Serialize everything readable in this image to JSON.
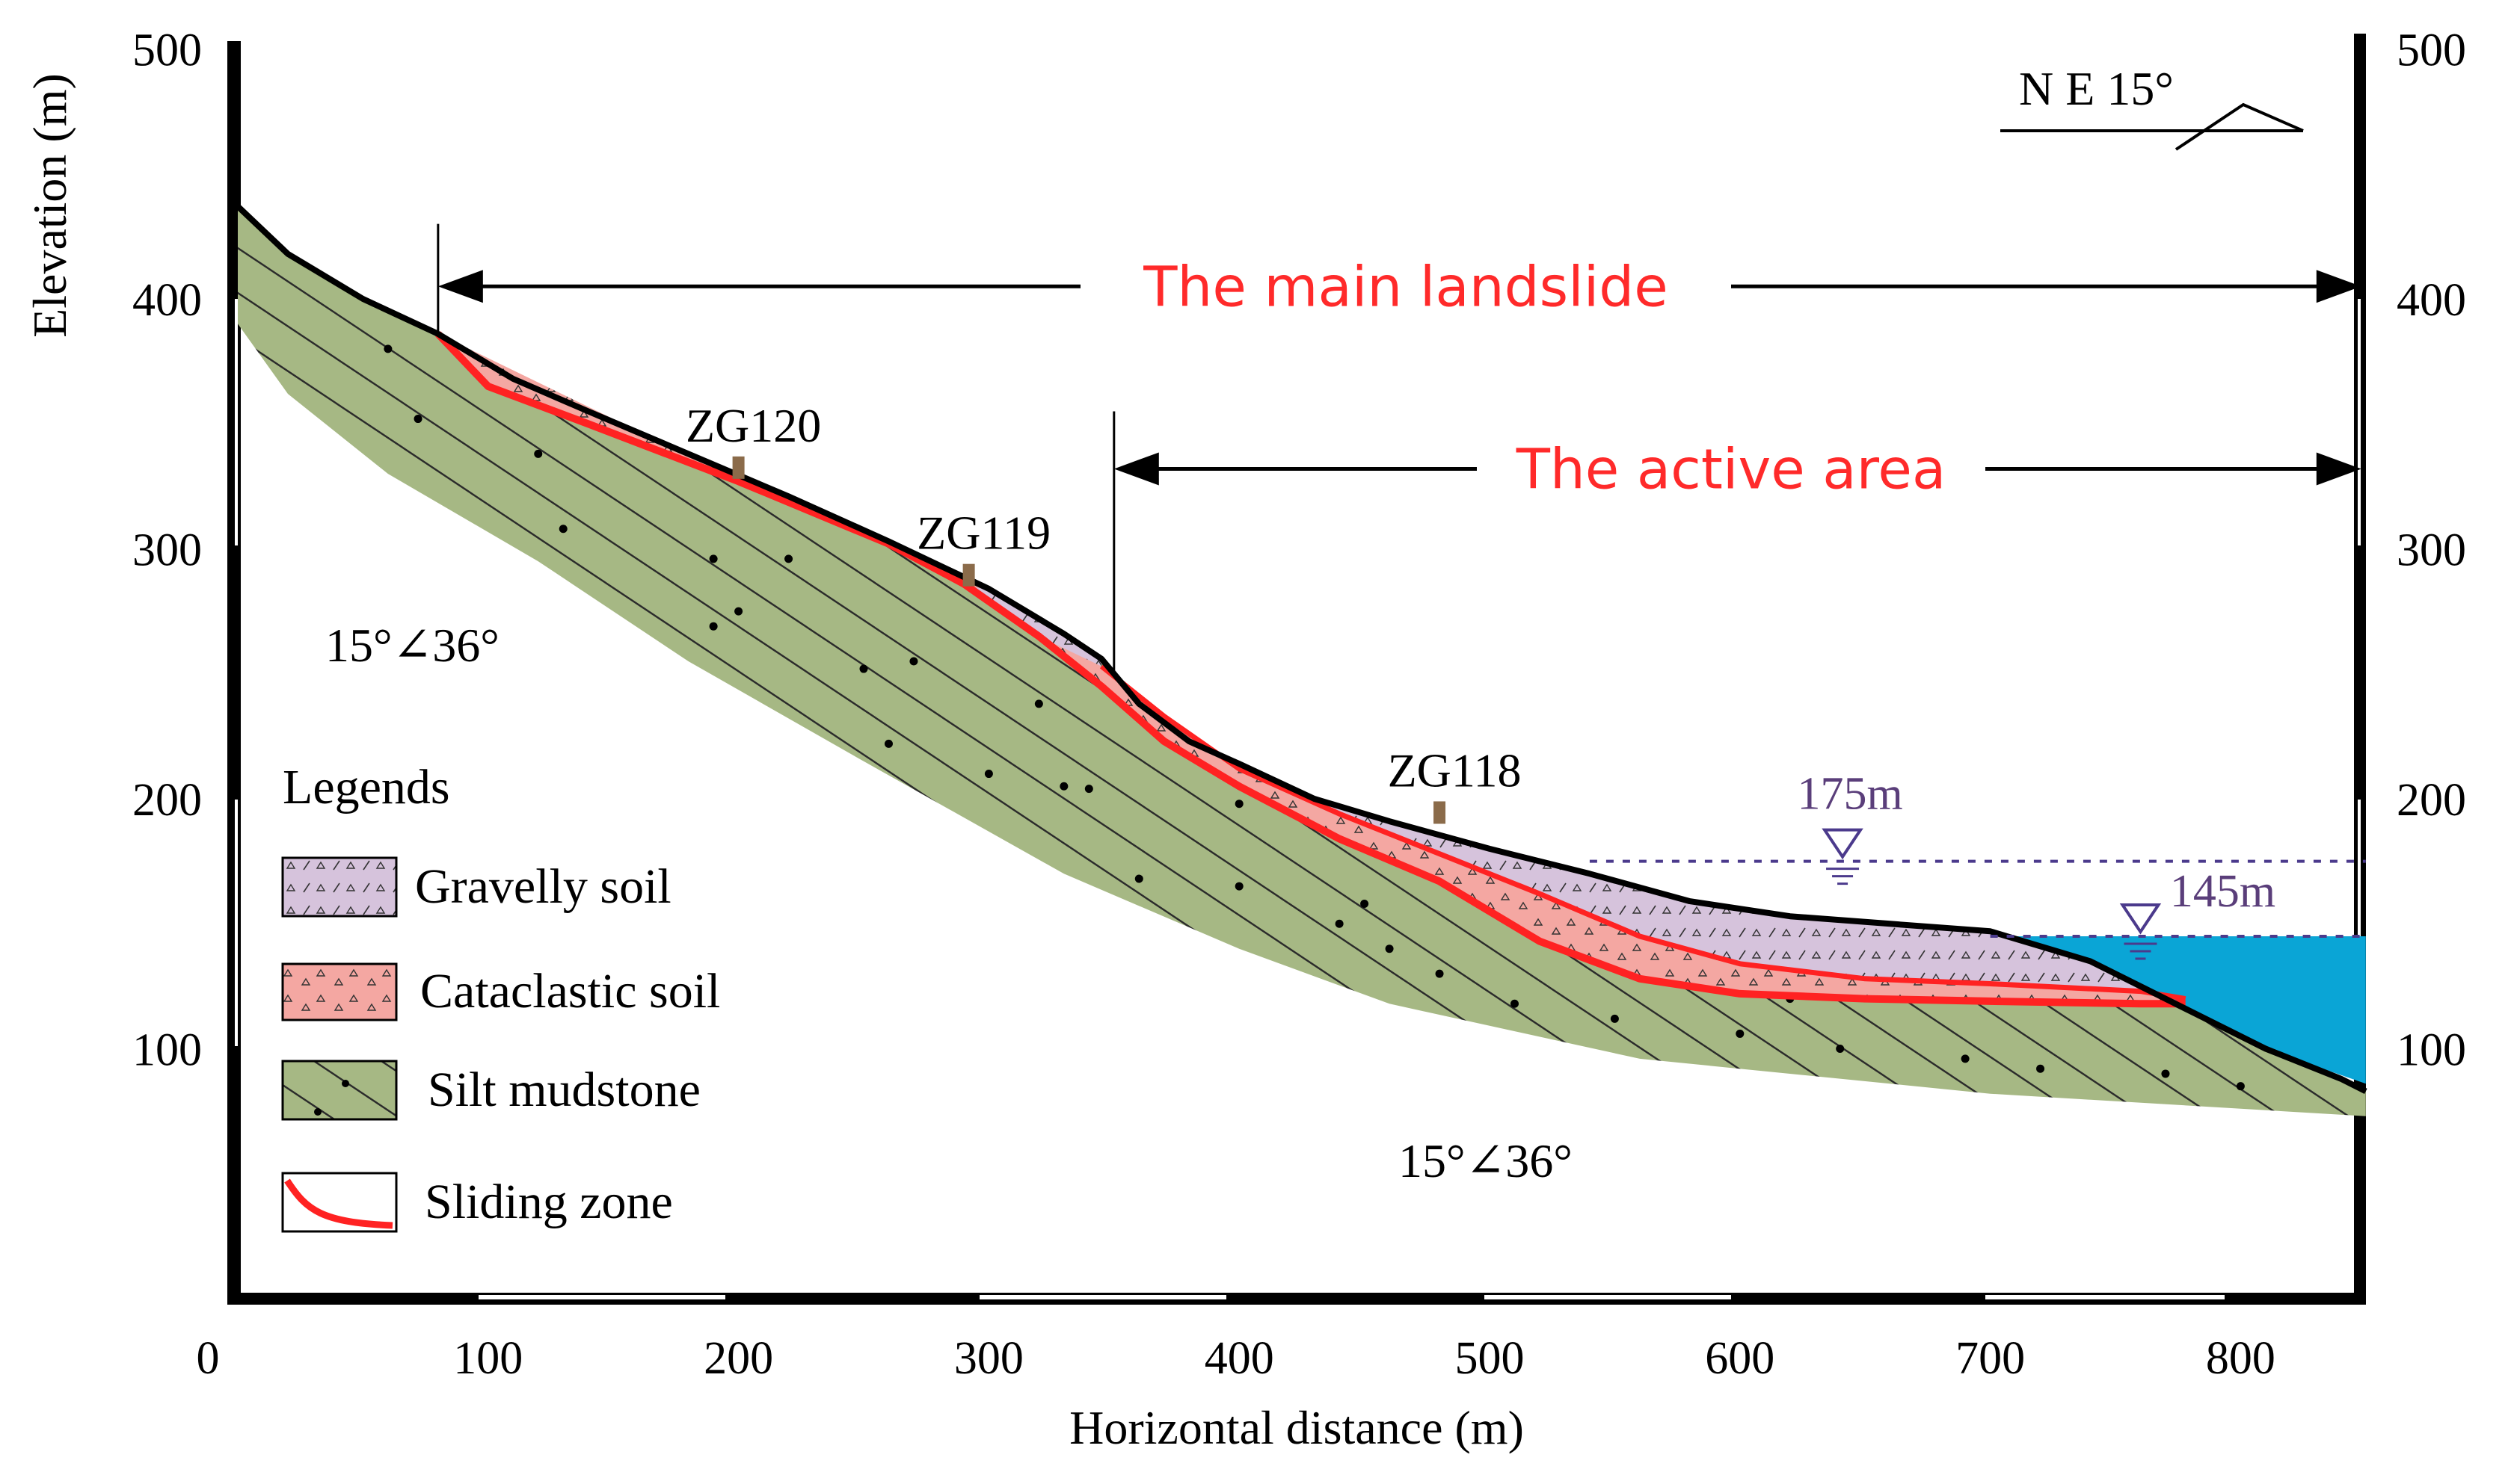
{
  "chart_data": {
    "type": "geological_cross_section",
    "xlabel": "Horizontal distance (m)",
    "ylabel": "Elevation (m)",
    "xlim": [
      0,
      850
    ],
    "ylim": [
      0,
      500
    ],
    "x_ticks": [
      {
        "v": 0,
        "label": "0"
      },
      {
        "v": 100,
        "label": "100"
      },
      {
        "v": 200,
        "label": "200"
      },
      {
        "v": 300,
        "label": "300"
      },
      {
        "v": 400,
        "label": "400"
      },
      {
        "v": 500,
        "label": "500"
      },
      {
        "v": 600,
        "label": "600"
      },
      {
        "v": 700,
        "label": "700"
      },
      {
        "v": 800,
        "label": "800"
      }
    ],
    "y_ticks": [
      {
        "v": 100,
        "label": "100"
      },
      {
        "v": 200,
        "label": "200"
      },
      {
        "v": 300,
        "label": "300"
      },
      {
        "v": 400,
        "label": "400"
      },
      {
        "v": 500,
        "label": "500"
      }
    ],
    "orientation_label": "N E 15°",
    "dip_labels": [
      "15°∠36°",
      "15°∠36°"
    ],
    "spans": [
      {
        "label": "The main landslide",
        "from": 80,
        "to": 850,
        "elev": 405
      },
      {
        "label": "The active area",
        "from": 350,
        "to": 850,
        "elev": 332
      }
    ],
    "boreholes": [
      {
        "label": "ZG120",
        "x": 200,
        "elev": 328
      },
      {
        "label": "ZG119",
        "x": 292,
        "elev": 285
      },
      {
        "label": "ZG118",
        "x": 480,
        "elev": 190
      }
    ],
    "water_levels": [
      {
        "label": "175m",
        "elev": 175,
        "from": 540,
        "to": 850,
        "marker_x": 641
      },
      {
        "label": "145m",
        "elev": 145,
        "from": 700,
        "to": 850,
        "marker_x": 760
      }
    ],
    "ground_surface": [
      [
        0,
        437
      ],
      [
        20,
        418
      ],
      [
        50,
        400
      ],
      [
        80,
        386
      ],
      [
        110,
        368
      ],
      [
        140,
        355
      ],
      [
        180,
        338
      ],
      [
        220,
        321
      ],
      [
        260,
        303
      ],
      [
        300,
        284
      ],
      [
        330,
        266
      ],
      [
        345,
        256
      ],
      [
        360,
        238
      ],
      [
        380,
        223
      ],
      [
        400,
        214
      ],
      [
        430,
        200
      ],
      [
        460,
        191
      ],
      [
        500,
        180
      ],
      [
        540,
        170
      ],
      [
        580,
        159
      ],
      [
        620,
        153
      ],
      [
        660,
        150
      ],
      [
        700,
        147
      ],
      [
        740,
        135
      ],
      [
        780,
        115
      ],
      [
        810,
        100
      ],
      [
        840,
        88
      ],
      [
        850,
        83
      ]
    ],
    "sliding_surface": [
      [
        80,
        386
      ],
      [
        100,
        365
      ],
      [
        140,
        350
      ],
      [
        200,
        327
      ],
      [
        260,
        302
      ],
      [
        290,
        286
      ],
      [
        320,
        265
      ],
      [
        345,
        245
      ],
      [
        370,
        223
      ],
      [
        400,
        205
      ],
      [
        440,
        184
      ],
      [
        480,
        167
      ],
      [
        520,
        143
      ],
      [
        560,
        128
      ],
      [
        600,
        122
      ],
      [
        650,
        120
      ],
      [
        700,
        119
      ],
      [
        760,
        118
      ],
      [
        778,
        118
      ]
    ],
    "mudstone_bottom": [
      [
        0,
        390
      ],
      [
        20,
        362
      ],
      [
        60,
        330
      ],
      [
        120,
        295
      ],
      [
        180,
        255
      ],
      [
        250,
        215
      ],
      [
        330,
        170
      ],
      [
        400,
        140
      ],
      [
        460,
        118
      ],
      [
        560,
        96
      ],
      [
        700,
        82
      ],
      [
        850,
        73
      ]
    ],
    "legend": {
      "title": "Legends",
      "items": [
        {
          "label": "Gravelly soil",
          "key": "gravelly"
        },
        {
          "label": "Cataclastic soil",
          "key": "cataclastic"
        },
        {
          "label": "Silt mudstone",
          "key": "mudstone"
        },
        {
          "label": "Sliding zone",
          "key": "sliding"
        }
      ]
    },
    "colors": {
      "mudstone": "#a6b884",
      "gravelly": "#d6c3dc",
      "cataclastic": "#f4a7a2",
      "sliding": "#ff2222",
      "water": "#0aa5d6",
      "water_line": "#4b3a8c",
      "label_red": "#ff2a2a"
    }
  }
}
